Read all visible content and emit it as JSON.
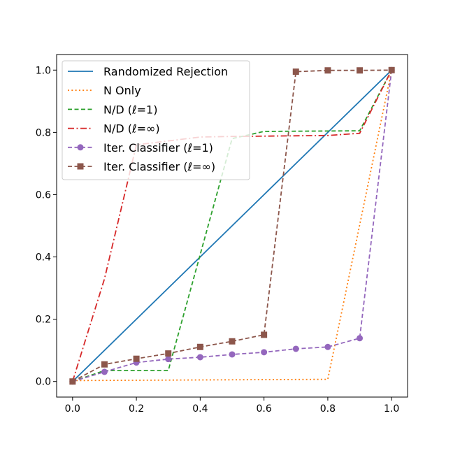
{
  "chart_data": {
    "type": "line",
    "title": "",
    "xlabel": "",
    "ylabel": "",
    "xlim": [
      -0.05,
      1.05
    ],
    "ylim": [
      -0.05,
      1.05
    ],
    "xticks": [
      "0.0",
      "0.2",
      "0.4",
      "0.6",
      "0.8",
      "1.0"
    ],
    "yticks": [
      "0.0",
      "0.2",
      "0.4",
      "0.6",
      "0.8",
      "1.0"
    ],
    "grid": false,
    "legend_position": "top-left",
    "series": [
      {
        "name": "Randomized Rejection",
        "color": "#1f77b4",
        "style": "solid",
        "marker": "none",
        "x": [
          0.0,
          1.0
        ],
        "y": [
          0.0,
          1.0
        ]
      },
      {
        "name": "N Only",
        "color": "#ff7f0e",
        "style": "dotted",
        "marker": "none",
        "x": [
          0.0,
          0.8,
          1.0
        ],
        "y": [
          0.003,
          0.007,
          1.0
        ]
      },
      {
        "name": "N/D (ℓ=1)",
        "color": "#2ca02c",
        "style": "dashed",
        "marker": "none",
        "x": [
          0.0,
          0.1,
          0.3,
          0.5,
          0.6,
          0.9,
          1.0
        ],
        "y": [
          0.0,
          0.035,
          0.035,
          0.78,
          0.803,
          0.805,
          1.0
        ]
      },
      {
        "name": "N/D (ℓ=∞)",
        "color": "#d62728",
        "style": "dashdot",
        "marker": "none",
        "x": [
          0.0,
          0.1,
          0.2,
          0.4,
          0.5,
          0.8,
          0.9,
          1.0
        ],
        "y": [
          0.0,
          0.33,
          0.76,
          0.785,
          0.787,
          0.79,
          0.797,
          1.0
        ]
      },
      {
        "name": "Iter. Classifier (ℓ=1)",
        "color": "#9467bd",
        "style": "dashed",
        "marker": "circle",
        "x": [
          0.0,
          0.1,
          0.2,
          0.3,
          0.4,
          0.5,
          0.6,
          0.7,
          0.8,
          0.9,
          1.0
        ],
        "y": [
          0.0,
          0.031,
          0.061,
          0.072,
          0.078,
          0.087,
          0.094,
          0.105,
          0.111,
          0.139,
          1.0
        ]
      },
      {
        "name": "Iter. Classifier (ℓ=∞)",
        "color": "#8c564b",
        "style": "dashed",
        "marker": "square",
        "x": [
          0.0,
          0.1,
          0.2,
          0.3,
          0.4,
          0.5,
          0.6,
          0.7,
          0.8,
          0.9,
          1.0
        ],
        "y": [
          0.0,
          0.055,
          0.073,
          0.09,
          0.111,
          0.129,
          0.15,
          0.995,
          0.999,
          0.999,
          1.0
        ]
      }
    ]
  }
}
